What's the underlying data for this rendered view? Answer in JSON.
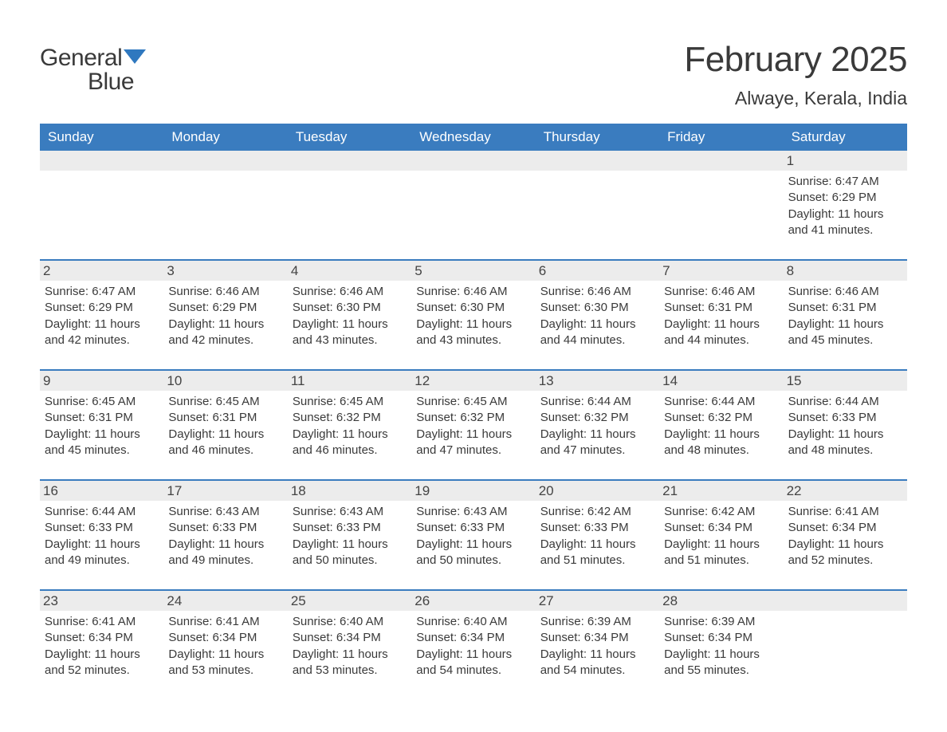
{
  "logo": {
    "text1": "General",
    "text2": "Blue"
  },
  "title": "February 2025",
  "subtitle": "Alwaye, Kerala, India",
  "colors": {
    "header_bg": "#3a7cbf",
    "header_text": "#ffffff",
    "daynum_bg": "#ececec",
    "separator": "#3a7cbf",
    "body_text": "#3a3a3a",
    "logo_blue": "#2f78bf"
  },
  "day_names": [
    "Sunday",
    "Monday",
    "Tuesday",
    "Wednesday",
    "Thursday",
    "Friday",
    "Saturday"
  ],
  "weeks": [
    [
      null,
      null,
      null,
      null,
      null,
      null,
      {
        "n": "1",
        "sunrise": "6:47 AM",
        "sunset": "6:29 PM",
        "daylight": "11 hours and 41 minutes."
      }
    ],
    [
      {
        "n": "2",
        "sunrise": "6:47 AM",
        "sunset": "6:29 PM",
        "daylight": "11 hours and 42 minutes."
      },
      {
        "n": "3",
        "sunrise": "6:46 AM",
        "sunset": "6:29 PM",
        "daylight": "11 hours and 42 minutes."
      },
      {
        "n": "4",
        "sunrise": "6:46 AM",
        "sunset": "6:30 PM",
        "daylight": "11 hours and 43 minutes."
      },
      {
        "n": "5",
        "sunrise": "6:46 AM",
        "sunset": "6:30 PM",
        "daylight": "11 hours and 43 minutes."
      },
      {
        "n": "6",
        "sunrise": "6:46 AM",
        "sunset": "6:30 PM",
        "daylight": "11 hours and 44 minutes."
      },
      {
        "n": "7",
        "sunrise": "6:46 AM",
        "sunset": "6:31 PM",
        "daylight": "11 hours and 44 minutes."
      },
      {
        "n": "8",
        "sunrise": "6:46 AM",
        "sunset": "6:31 PM",
        "daylight": "11 hours and 45 minutes."
      }
    ],
    [
      {
        "n": "9",
        "sunrise": "6:45 AM",
        "sunset": "6:31 PM",
        "daylight": "11 hours and 45 minutes."
      },
      {
        "n": "10",
        "sunrise": "6:45 AM",
        "sunset": "6:31 PM",
        "daylight": "11 hours and 46 minutes."
      },
      {
        "n": "11",
        "sunrise": "6:45 AM",
        "sunset": "6:32 PM",
        "daylight": "11 hours and 46 minutes."
      },
      {
        "n": "12",
        "sunrise": "6:45 AM",
        "sunset": "6:32 PM",
        "daylight": "11 hours and 47 minutes."
      },
      {
        "n": "13",
        "sunrise": "6:44 AM",
        "sunset": "6:32 PM",
        "daylight": "11 hours and 47 minutes."
      },
      {
        "n": "14",
        "sunrise": "6:44 AM",
        "sunset": "6:32 PM",
        "daylight": "11 hours and 48 minutes."
      },
      {
        "n": "15",
        "sunrise": "6:44 AM",
        "sunset": "6:33 PM",
        "daylight": "11 hours and 48 minutes."
      }
    ],
    [
      {
        "n": "16",
        "sunrise": "6:44 AM",
        "sunset": "6:33 PM",
        "daylight": "11 hours and 49 minutes."
      },
      {
        "n": "17",
        "sunrise": "6:43 AM",
        "sunset": "6:33 PM",
        "daylight": "11 hours and 49 minutes."
      },
      {
        "n": "18",
        "sunrise": "6:43 AM",
        "sunset": "6:33 PM",
        "daylight": "11 hours and 50 minutes."
      },
      {
        "n": "19",
        "sunrise": "6:43 AM",
        "sunset": "6:33 PM",
        "daylight": "11 hours and 50 minutes."
      },
      {
        "n": "20",
        "sunrise": "6:42 AM",
        "sunset": "6:33 PM",
        "daylight": "11 hours and 51 minutes."
      },
      {
        "n": "21",
        "sunrise": "6:42 AM",
        "sunset": "6:34 PM",
        "daylight": "11 hours and 51 minutes."
      },
      {
        "n": "22",
        "sunrise": "6:41 AM",
        "sunset": "6:34 PM",
        "daylight": "11 hours and 52 minutes."
      }
    ],
    [
      {
        "n": "23",
        "sunrise": "6:41 AM",
        "sunset": "6:34 PM",
        "daylight": "11 hours and 52 minutes."
      },
      {
        "n": "24",
        "sunrise": "6:41 AM",
        "sunset": "6:34 PM",
        "daylight": "11 hours and 53 minutes."
      },
      {
        "n": "25",
        "sunrise": "6:40 AM",
        "sunset": "6:34 PM",
        "daylight": "11 hours and 53 minutes."
      },
      {
        "n": "26",
        "sunrise": "6:40 AM",
        "sunset": "6:34 PM",
        "daylight": "11 hours and 54 minutes."
      },
      {
        "n": "27",
        "sunrise": "6:39 AM",
        "sunset": "6:34 PM",
        "daylight": "11 hours and 54 minutes."
      },
      {
        "n": "28",
        "sunrise": "6:39 AM",
        "sunset": "6:34 PM",
        "daylight": "11 hours and 55 minutes."
      },
      null
    ]
  ],
  "labels": {
    "sunrise": "Sunrise: ",
    "sunset": "Sunset: ",
    "daylight": "Daylight: "
  }
}
